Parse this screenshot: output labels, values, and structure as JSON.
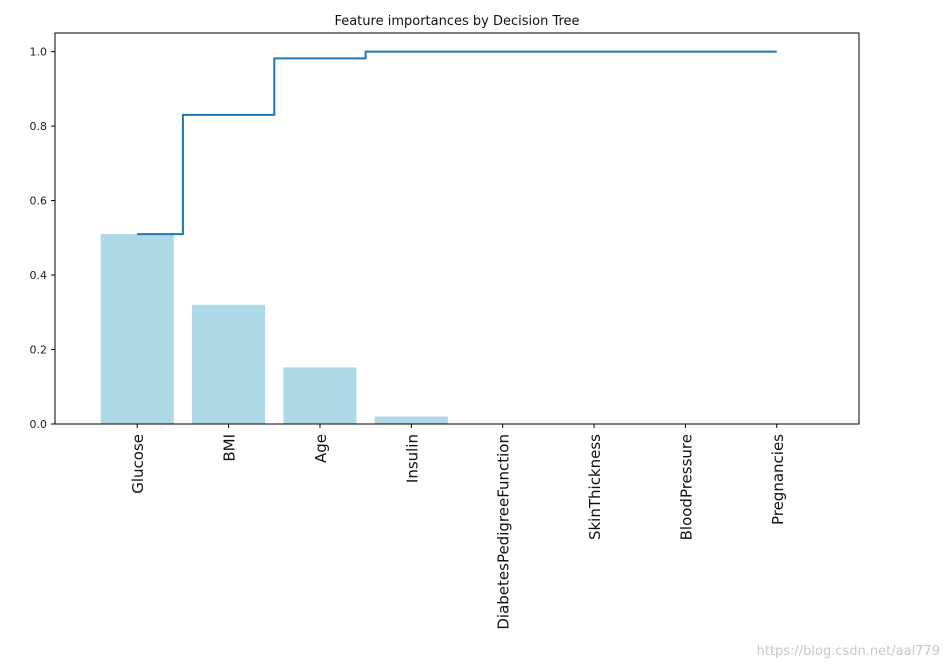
{
  "chart_data": {
    "type": "bar",
    "title": "Feature importances by Decision Tree",
    "categories": [
      "Glucose",
      "BMI",
      "Age",
      "Insulin",
      "DiabetesPedigreeFunction",
      "SkinThickness",
      "BloodPressure",
      "Pregnancies"
    ],
    "series": [
      {
        "type": "bar",
        "values": [
          0.51,
          0.32,
          0.152,
          0.02,
          0.0,
          0.0,
          0.0,
          0.0
        ]
      },
      {
        "type": "step",
        "values": [
          0.51,
          0.83,
          0.982,
          1.0,
          1.0,
          1.0,
          1.0,
          1.0
        ]
      }
    ],
    "ylim": [
      0.0,
      1.05
    ],
    "yticks": [
      0.0,
      0.2,
      0.4,
      0.6,
      0.8,
      1.0
    ],
    "ytick_labels": [
      "0.0",
      "0.2",
      "0.4",
      "0.6",
      "0.8",
      "1.0"
    ],
    "grid": false,
    "colors": {
      "bar": "#add8e6",
      "line": "#1f77b4",
      "axis": "#000000"
    }
  },
  "watermark": "https://blog.csdn.net/aal779"
}
